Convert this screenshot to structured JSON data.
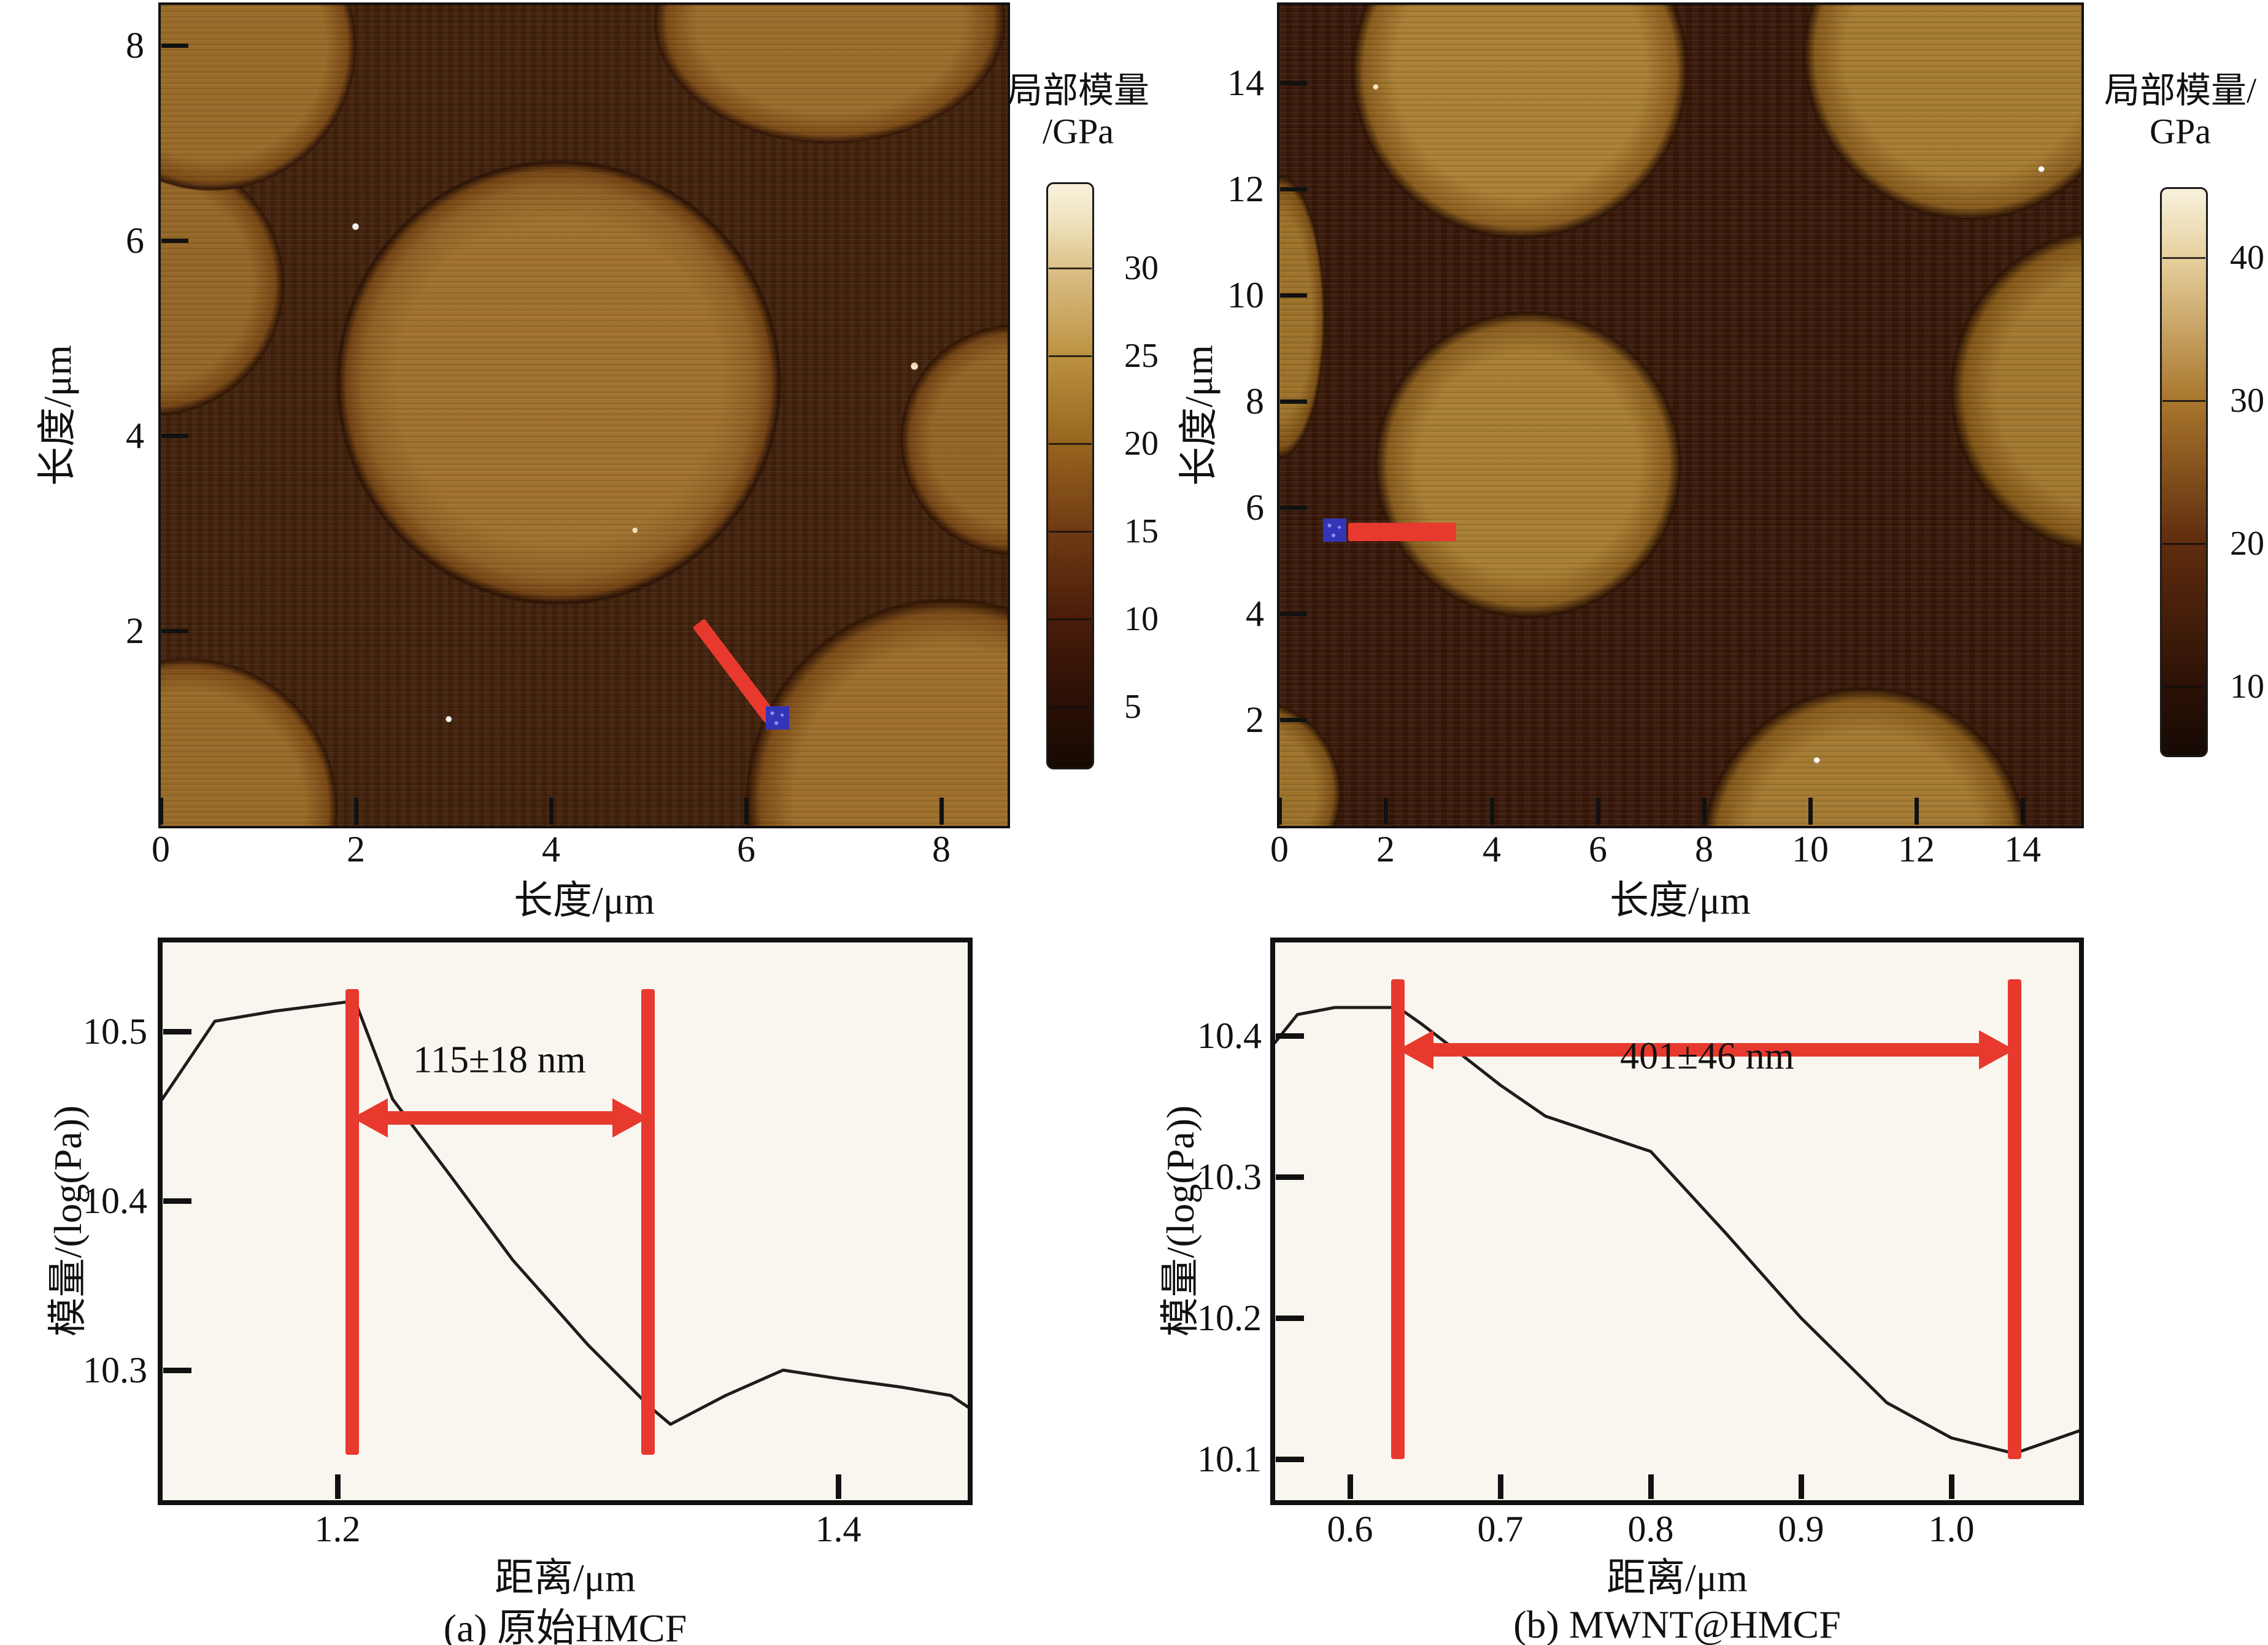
{
  "colors": {
    "accent_red": "#e8392e",
    "marker_blue": "#3434b8",
    "curve_black": "#1f1d1b",
    "fiber_gold": "#a1732e",
    "matrix_brown": "#3f1f0a"
  },
  "maps": {
    "a": {
      "xlabel": "长度/μm",
      "ylabel": "长度/μm",
      "x_ticks": [
        "0",
        "2",
        "4",
        "6",
        "8"
      ],
      "y_ticks": [
        "2",
        "4",
        "6",
        "8"
      ],
      "profile_line": {
        "x1_um": 5.51,
        "y1_um": 2.08,
        "x2_um": 6.26,
        "y2_um": 1.09,
        "marker_x_um": 6.32,
        "marker_y_um": 1.11
      }
    },
    "b": {
      "xlabel": "长度/μm",
      "ylabel": "长度/μm",
      "x_ticks": [
        "0",
        "2",
        "4",
        "6",
        "8",
        "10",
        "12",
        "14"
      ],
      "y_ticks": [
        "2",
        "4",
        "6",
        "8",
        "10",
        "12",
        "14"
      ],
      "profile_line": {
        "x1_um": 1.29,
        "y1_um": 5.54,
        "x2_um": 3.33,
        "y2_um": 5.54,
        "marker_x_um": 1.04,
        "marker_y_um": 5.57
      }
    }
  },
  "colorbars": {
    "a": {
      "title_line1": "局部模量",
      "title_line2": "/GPa",
      "tick_labels": [
        "30",
        "25",
        "20",
        "15",
        "10",
        "5"
      ]
    },
    "b": {
      "title_line1": "局部模量/",
      "title_line2": "GPa",
      "tick_labels": [
        "40",
        "30",
        "20",
        "10"
      ]
    }
  },
  "chart_data": [
    {
      "type": "line",
      "title": "(a) 原始HMCF",
      "xlabel": "距离/μm",
      "ylabel": "模量/(log(Pa))",
      "x": [
        1.13,
        1.151,
        1.175,
        1.207,
        1.222,
        1.245,
        1.27,
        1.3,
        1.325,
        1.333,
        1.355,
        1.378,
        1.4,
        1.425,
        1.445,
        1.452
      ],
      "y": [
        10.46,
        10.506,
        10.512,
        10.518,
        10.46,
        10.415,
        10.365,
        10.315,
        10.278,
        10.268,
        10.285,
        10.3,
        10.295,
        10.29,
        10.285,
        10.278
      ],
      "x_ticks": [
        "1.2",
        "1.4"
      ],
      "y_ticks": [
        "10.5",
        "10.4",
        "10.3"
      ],
      "xlim": [
        1.13,
        1.452
      ],
      "ylim": [
        10.223,
        10.553
      ],
      "grid": false,
      "legend": null,
      "annotation": "115±18 nm",
      "interface_lines_x": [
        1.206,
        1.324
      ],
      "interface_lines_yspan": [
        10.25,
        10.525
      ],
      "arrow_y": 10.449
    },
    {
      "type": "line",
      "title": "(b) MWNT@HMCF",
      "xlabel": "距离/μm",
      "ylabel": "模量/(log(Pa))",
      "x": [
        0.55,
        0.565,
        0.59,
        0.632,
        0.648,
        0.67,
        0.7,
        0.73,
        0.8,
        0.85,
        0.9,
        0.957,
        1.0,
        1.042,
        1.085
      ],
      "y": [
        10.395,
        10.415,
        10.42,
        10.42,
        10.408,
        10.39,
        10.365,
        10.343,
        10.318,
        10.26,
        10.2,
        10.14,
        10.115,
        10.104,
        10.12
      ],
      "x_ticks": [
        "0.6",
        "0.7",
        "0.8",
        "0.9",
        "1.0"
      ],
      "y_ticks": [
        "10.4",
        "10.3",
        "10.2",
        "10.1"
      ],
      "xlim": [
        0.55,
        1.085
      ],
      "ylim": [
        10.071,
        10.466
      ],
      "grid": false,
      "legend": null,
      "annotation": "401±46 nm",
      "interface_lines_x": [
        0.632,
        1.042
      ],
      "interface_lines_yspan": [
        10.1,
        10.44
      ],
      "arrow_y": 10.39
    }
  ]
}
